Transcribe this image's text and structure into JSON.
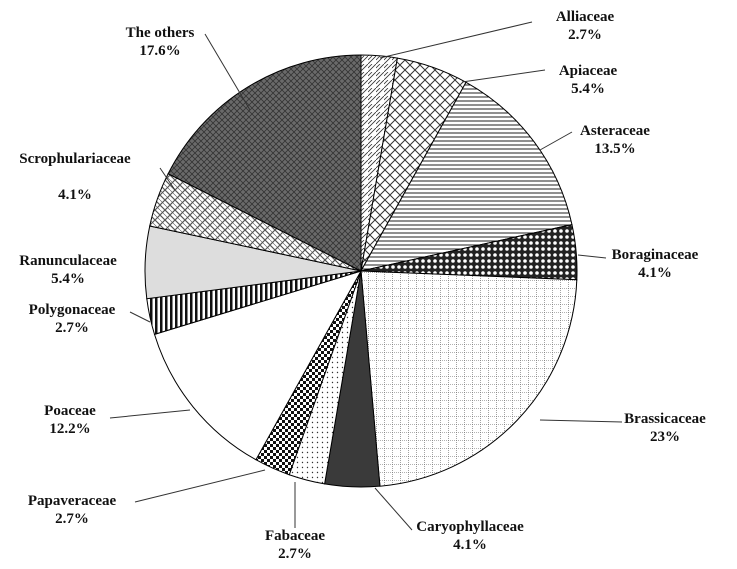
{
  "chart_data": {
    "type": "pie",
    "categories": [
      "Alliaceae",
      "Apiaceae",
      "Asteraceae",
      "Boraginaceae",
      "Brassicaceae",
      "Caryophyllaceae",
      "Fabaceae",
      "Papaveraceae",
      "Poaceae",
      "Polygonaceae",
      "Ranunculaceae",
      "Scrophulariaceae",
      "The others"
    ],
    "values": [
      2.7,
      5.4,
      13.5,
      4.1,
      23,
      4.1,
      2.7,
      2.7,
      12.2,
      2.7,
      5.4,
      4.1,
      17.6
    ],
    "value_labels": [
      "2.7%",
      "5.4%",
      "13.5%",
      "4.1%",
      "23%",
      "4.1%",
      "2.7%",
      "2.7%",
      "12.2%",
      "2.7%",
      "5.4%",
      "4.1%",
      "17.6%"
    ]
  }
}
